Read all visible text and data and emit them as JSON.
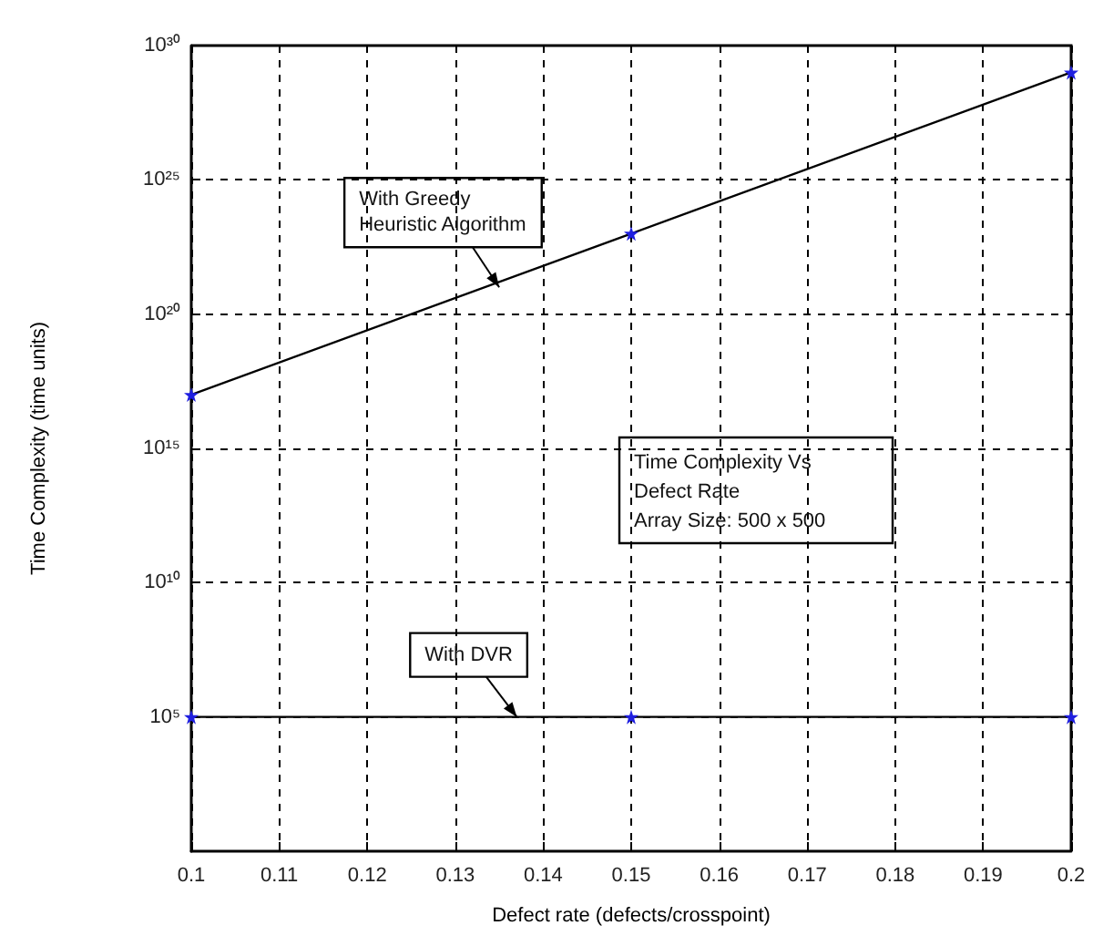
{
  "chart_data": {
    "type": "line",
    "xlabel": "Defect rate (defects/crosspoint)",
    "ylabel": "Time Complexity (time units)",
    "x": [
      0.1,
      0.15,
      0.2
    ],
    "series": [
      {
        "color": "#000000",
        "values": [
          1e+17,
          1e+23,
          1e+29
        ]
      },
      {
        "color": "#000000",
        "values": [
          100000.0,
          100000.0,
          100000.0
        ]
      }
    ],
    "log": "y",
    "xlim": [
      0.1,
      0.2
    ],
    "xticks": [
      0.1,
      0.11,
      0.12,
      0.13,
      0.14,
      0.15,
      0.16,
      0.17,
      0.18,
      0.19,
      0.2
    ],
    "ylim": [
      1,
      1e+30
    ],
    "yticks": [
      {
        "value": 100000.0,
        "label": "10⁵"
      },
      {
        "value": 10000000000.0,
        "label": "10¹⁰"
      },
      {
        "value": 1000000000000000.0,
        "label": "10¹⁵"
      },
      {
        "value": 1e+20,
        "label": "10²⁰"
      },
      {
        "value": 1e+25,
        "label": "10²⁵"
      },
      {
        "value": 1e+30,
        "label": "10³⁰"
      }
    ],
    "grid": true,
    "marker": "star",
    "line_style": "solid",
    "annotations": [
      {
        "text": "With Greedy\nHeuristic Algorithm",
        "x": 0.135,
        "y": 1e+21
      },
      {
        "text": "With DVR",
        "x": 0.137,
        "y": 100000.0
      },
      "Time Complexity Vs\nDefect Rate\nArray Size: 500 x 500"
    ]
  }
}
